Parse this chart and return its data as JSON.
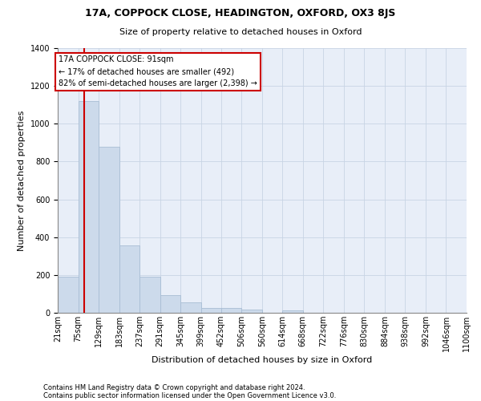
{
  "title1": "17A, COPPOCK CLOSE, HEADINGTON, OXFORD, OX3 8JS",
  "title2": "Size of property relative to detached houses in Oxford",
  "xlabel": "Distribution of detached houses by size in Oxford",
  "ylabel": "Number of detached properties",
  "footnote1": "Contains HM Land Registry data © Crown copyright and database right 2024.",
  "footnote2": "Contains public sector information licensed under the Open Government Licence v3.0.",
  "bin_edges": [
    21,
    75,
    129,
    183,
    237,
    291,
    345,
    399,
    452,
    506,
    560,
    614,
    668,
    722,
    776,
    830,
    884,
    938,
    992,
    1046,
    1100
  ],
  "bin_labels": [
    "21sqm",
    "75sqm",
    "129sqm",
    "183sqm",
    "237sqm",
    "291sqm",
    "345sqm",
    "399sqm",
    "452sqm",
    "506sqm",
    "560sqm",
    "614sqm",
    "668sqm",
    "722sqm",
    "776sqm",
    "830sqm",
    "884sqm",
    "938sqm",
    "992sqm",
    "1046sqm",
    "1100sqm"
  ],
  "bar_values": [
    190,
    1120,
    880,
    355,
    190,
    95,
    55,
    25,
    25,
    18,
    0,
    12,
    0,
    0,
    0,
    0,
    0,
    0,
    0,
    0
  ],
  "bar_color": "#ccdaeb",
  "bar_edge_color": "#a8bdd4",
  "property_sqm": 91,
  "property_line_color": "#cc0000",
  "annotation_text": "17A COPPOCK CLOSE: 91sqm\n← 17% of detached houses are smaller (492)\n82% of semi-detached houses are larger (2,398) →",
  "annotation_box_color": "#ffffff",
  "annotation_box_edge": "#cc0000",
  "ylim": [
    0,
    1400
  ],
  "yticks": [
    0,
    200,
    400,
    600,
    800,
    1000,
    1200,
    1400
  ],
  "grid_color": "#c8d4e4",
  "background_color": "#e8eef8",
  "title_fontsize": 9,
  "subtitle_fontsize": 8,
  "ylabel_fontsize": 8,
  "xlabel_fontsize": 8,
  "tick_fontsize": 7,
  "footnote_fontsize": 6
}
